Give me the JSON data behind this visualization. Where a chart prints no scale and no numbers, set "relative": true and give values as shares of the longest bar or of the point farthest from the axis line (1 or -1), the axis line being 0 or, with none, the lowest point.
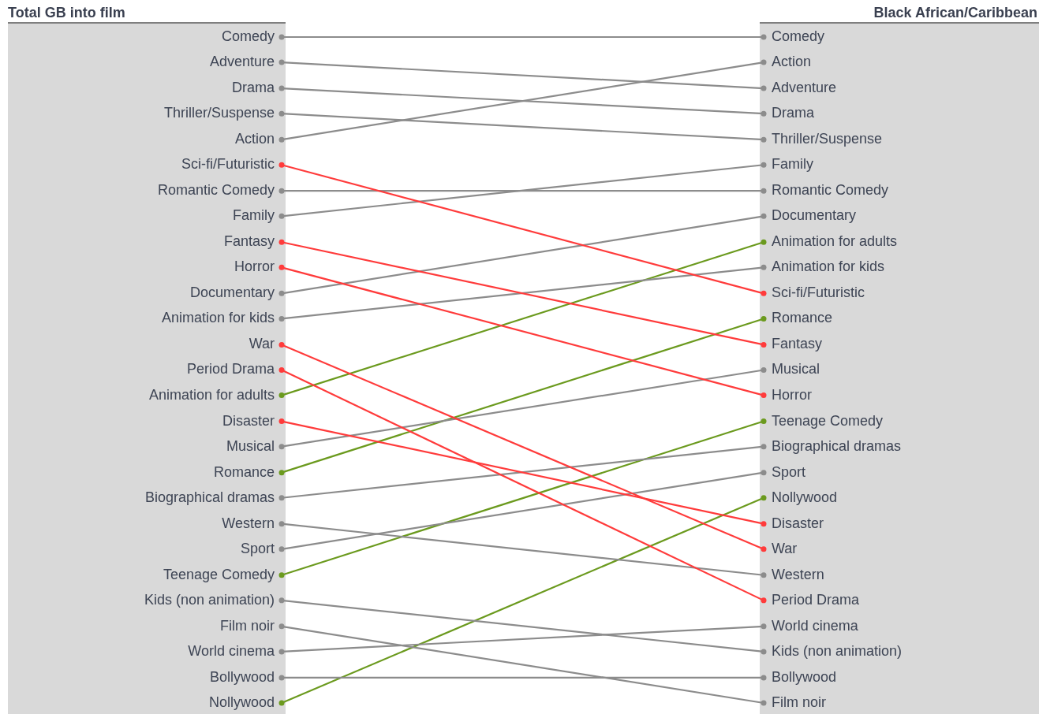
{
  "chart_data": {
    "type": "line",
    "categories": [
      null,
      null
    ],
    "annotations": [
      "Total GB into film",
      "Black African/Caribbean"
    ],
    "relative": true,
    "tick_labels": false,
    "legend": false,
    "marker": "circle",
    "line_style": "solid",
    "series": [
      {
        "name": "Comedy",
        "color": "#8c8c8c",
        "values": [
          1,
          1
        ]
      },
      {
        "name": "Adventure",
        "color": "#8c8c8c",
        "values": [
          0.962,
          0.923
        ]
      },
      {
        "name": "Drama",
        "color": "#8c8c8c",
        "values": [
          0.923,
          0.885
        ]
      },
      {
        "name": "Thriller/Suspense",
        "color": "#8c8c8c",
        "values": [
          0.885,
          0.846
        ]
      },
      {
        "name": "Action",
        "color": "#8c8c8c",
        "values": [
          0.846,
          0.962
        ]
      },
      {
        "name": "Sci-fi/Futuristic",
        "color": "#ff3b3b",
        "values": [
          0.808,
          0.615
        ]
      },
      {
        "name": "Romantic Comedy",
        "color": "#8c8c8c",
        "values": [
          0.769,
          0.769
        ]
      },
      {
        "name": "Family",
        "color": "#8c8c8c",
        "values": [
          0.731,
          0.808
        ]
      },
      {
        "name": "Fantasy",
        "color": "#ff3b3b",
        "values": [
          0.692,
          0.538
        ]
      },
      {
        "name": "Horror",
        "color": "#ff3b3b",
        "values": [
          0.654,
          0.462
        ]
      },
      {
        "name": "Documentary",
        "color": "#8c8c8c",
        "values": [
          0.615,
          0.731
        ]
      },
      {
        "name": "Animation for kids",
        "color": "#8c8c8c",
        "values": [
          0.577,
          0.654
        ]
      },
      {
        "name": "War",
        "color": "#ff3b3b",
        "values": [
          0.538,
          0.231
        ]
      },
      {
        "name": "Period Drama",
        "color": "#ff3b3b",
        "values": [
          0.5,
          0.154
        ]
      },
      {
        "name": "Animation for adults",
        "color": "#6b9a1e",
        "values": [
          0.462,
          0.692
        ]
      },
      {
        "name": "Disaster",
        "color": "#ff3b3b",
        "values": [
          0.423,
          0.269
        ]
      },
      {
        "name": "Musical",
        "color": "#8c8c8c",
        "values": [
          0.385,
          0.5
        ]
      },
      {
        "name": "Romance",
        "color": "#6b9a1e",
        "values": [
          0.346,
          0.577
        ]
      },
      {
        "name": "Biographical dramas",
        "color": "#8c8c8c",
        "values": [
          0.308,
          0.385
        ]
      },
      {
        "name": "Western",
        "color": "#8c8c8c",
        "values": [
          0.269,
          0.192
        ]
      },
      {
        "name": "Sport",
        "color": "#8c8c8c",
        "values": [
          0.231,
          0.346
        ]
      },
      {
        "name": "Teenage Comedy",
        "color": "#6b9a1e",
        "values": [
          0.192,
          0.423
        ]
      },
      {
        "name": "Kids (non animation)",
        "color": "#8c8c8c",
        "values": [
          0.154,
          0.077
        ]
      },
      {
        "name": "Film noir",
        "color": "#8c8c8c",
        "values": [
          0.115,
          0
        ]
      },
      {
        "name": "World cinema",
        "color": "#8c8c8c",
        "values": [
          0.077,
          0.115
        ]
      },
      {
        "name": "Bollywood",
        "color": "#8c8c8c",
        "values": [
          0.038,
          0.038
        ]
      },
      {
        "name": "Nollywood",
        "color": "#6b9a1e",
        "values": [
          0,
          0.308
        ]
      }
    ]
  }
}
